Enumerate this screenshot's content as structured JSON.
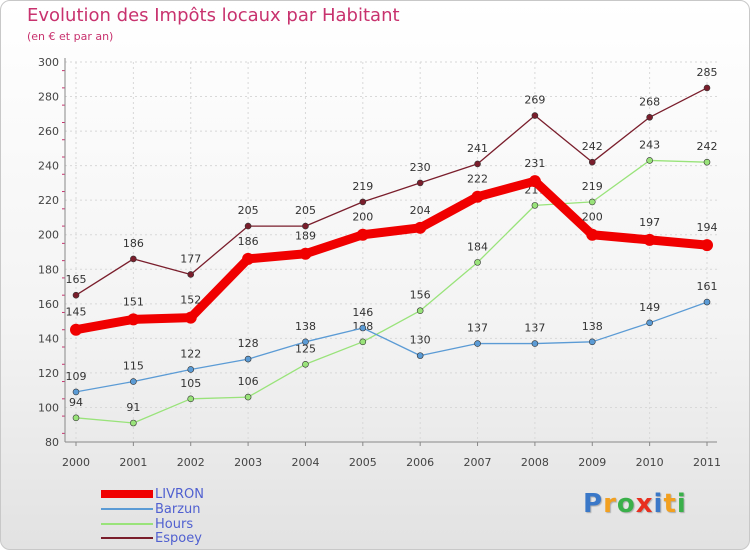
{
  "chart_data": {
    "type": "line",
    "title": "Evolution des Impôts locaux par Habitant",
    "subtitle": "(en € et par an)",
    "xlabel": "",
    "ylabel": "",
    "ylim": [
      80,
      300
    ],
    "yticks": [
      "80",
      "100",
      "120",
      "140",
      "160",
      "180",
      "200",
      "220",
      "240",
      "260",
      "280",
      "300"
    ],
    "categories": [
      "2000",
      "2001",
      "2002",
      "2003",
      "2004",
      "2005",
      "2006",
      "2007",
      "2008",
      "2009",
      "2010",
      "2011"
    ],
    "series": [
      {
        "name": "Espoey",
        "color": "#7a1e2c",
        "values": [
          165,
          186,
          177,
          205,
          205,
          219,
          230,
          241,
          269,
          242,
          268,
          285
        ]
      },
      {
        "name": "Hours",
        "color": "#99e37a",
        "values": [
          94,
          91,
          105,
          106,
          125,
          138,
          156,
          184,
          217,
          219,
          243,
          242
        ]
      },
      {
        "name": "Barzun",
        "color": "#5b9bd5",
        "values": [
          109,
          115,
          122,
          128,
          138,
          146,
          130,
          137,
          137,
          138,
          149,
          161
        ]
      },
      {
        "name": "LIVRON",
        "color": "#f00000",
        "values": [
          145,
          151,
          152,
          186,
          189,
          200,
          204,
          222,
          231,
          200,
          197,
          194
        ]
      }
    ],
    "legend_position": "bottom-left"
  },
  "legend": [
    {
      "name": "LIVRON",
      "color": "#f00000"
    },
    {
      "name": "Barzun",
      "color": "#5b9bd5"
    },
    {
      "name": "Hours",
      "color": "#99e37a"
    },
    {
      "name": "Espoey",
      "color": "#7a1e2c"
    }
  ],
  "logo": {
    "letters": [
      "P",
      "r",
      "o",
      "x",
      "i",
      "t",
      "i"
    ],
    "colors": [
      "#3a78c8",
      "#f2a020",
      "#3ab04a",
      "#e83020",
      "#3a78c8",
      "#f2a020",
      "#3ab04a"
    ]
  }
}
